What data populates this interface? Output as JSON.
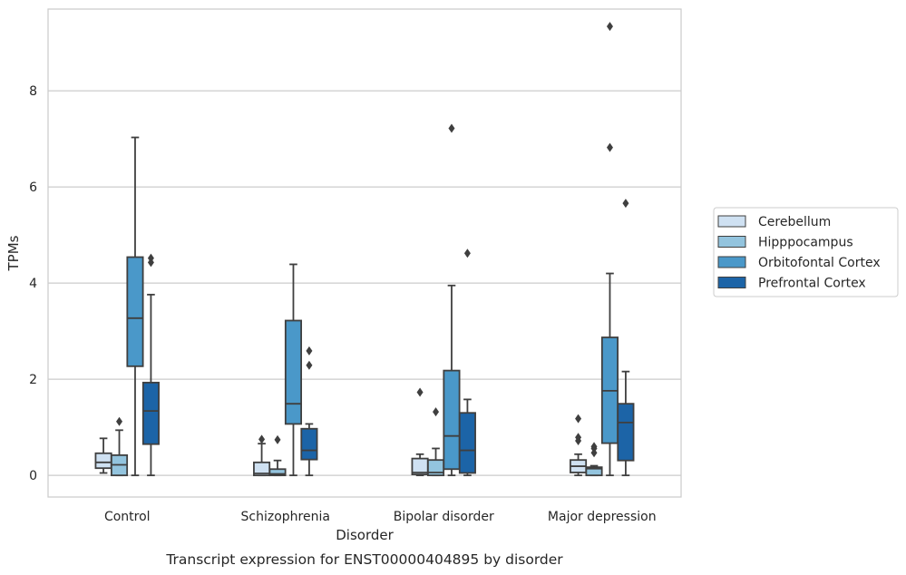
{
  "chart_data": {
    "type": "box",
    "title": "",
    "caption": "Transcript expression for ENST00000404895 by disorder",
    "xlabel": "Disorder",
    "ylabel": "TPMs",
    "ylim": [
      -0.45,
      9.7
    ],
    "yticks": [
      0,
      2,
      4,
      6,
      8
    ],
    "grid": true,
    "legend_position": "right",
    "categories": [
      "Control",
      "Schizophrenia",
      "Bipolar disorder",
      "Major depression"
    ],
    "series": [
      {
        "name": "Cerebellum",
        "color": "#cfe1f2",
        "boxes": [
          {
            "whislo": 0.05,
            "q1": 0.15,
            "med": 0.27,
            "q3": 0.46,
            "whishi": 0.77,
            "fliers": []
          },
          {
            "whislo": 0.0,
            "q1": 0.0,
            "med": 0.04,
            "q3": 0.27,
            "whishi": 0.66,
            "fliers": [
              0.75
            ]
          },
          {
            "whislo": 0.0,
            "q1": 0.02,
            "med": 0.06,
            "q3": 0.35,
            "whishi": 0.44,
            "fliers": [
              1.73
            ]
          },
          {
            "whislo": 0.0,
            "q1": 0.06,
            "med": 0.19,
            "q3": 0.32,
            "whishi": 0.44,
            "fliers": [
              0.72,
              0.79,
              1.18
            ]
          }
        ]
      },
      {
        "name": "Hipppocampus",
        "color": "#93c4de",
        "boxes": [
          {
            "whislo": 0.0,
            "q1": 0.0,
            "med": 0.22,
            "q3": 0.42,
            "whishi": 0.94,
            "fliers": [
              1.12
            ]
          },
          {
            "whislo": 0.0,
            "q1": 0.0,
            "med": 0.03,
            "q3": 0.13,
            "whishi": 0.31,
            "fliers": [
              0.74
            ]
          },
          {
            "whislo": 0.0,
            "q1": 0.0,
            "med": 0.06,
            "q3": 0.32,
            "whishi": 0.56,
            "fliers": [
              1.32
            ]
          },
          {
            "whislo": 0.0,
            "q1": 0.0,
            "med": 0.14,
            "q3": 0.17,
            "whishi": 0.2,
            "fliers": [
              0.47,
              0.56,
              0.6
            ]
          }
        ]
      },
      {
        "name": "Orbitofontal Cortex",
        "color": "#4a98c9",
        "boxes": [
          {
            "whislo": 0.0,
            "q1": 2.27,
            "med": 3.27,
            "q3": 4.54,
            "whishi": 7.03,
            "fliers": []
          },
          {
            "whislo": 0.0,
            "q1": 1.07,
            "med": 1.49,
            "q3": 3.22,
            "whishi": 4.39,
            "fliers": []
          },
          {
            "whislo": 0.0,
            "q1": 0.13,
            "med": 0.82,
            "q3": 2.18,
            "whishi": 3.95,
            "fliers": [
              7.22
            ]
          },
          {
            "whislo": 0.0,
            "q1": 0.67,
            "med": 1.76,
            "q3": 2.87,
            "whishi": 4.2,
            "fliers": [
              6.82,
              9.34
            ]
          }
        ]
      },
      {
        "name": "Prefrontal Cortex",
        "color": "#1c64a7",
        "boxes": [
          {
            "whislo": 0.0,
            "q1": 0.65,
            "med": 1.34,
            "q3": 1.93,
            "whishi": 3.76,
            "fliers": [
              4.43,
              4.52
            ]
          },
          {
            "whislo": 0.0,
            "q1": 0.33,
            "med": 0.52,
            "q3": 0.97,
            "whishi": 1.07,
            "fliers": [
              2.29,
              2.59
            ]
          },
          {
            "whislo": 0.0,
            "q1": 0.05,
            "med": 0.52,
            "q3": 1.3,
            "whishi": 1.58,
            "fliers": [
              4.62
            ]
          },
          {
            "whislo": 0.0,
            "q1": 0.31,
            "med": 1.1,
            "q3": 1.49,
            "whishi": 2.16,
            "fliers": [
              5.66
            ]
          }
        ]
      }
    ]
  }
}
